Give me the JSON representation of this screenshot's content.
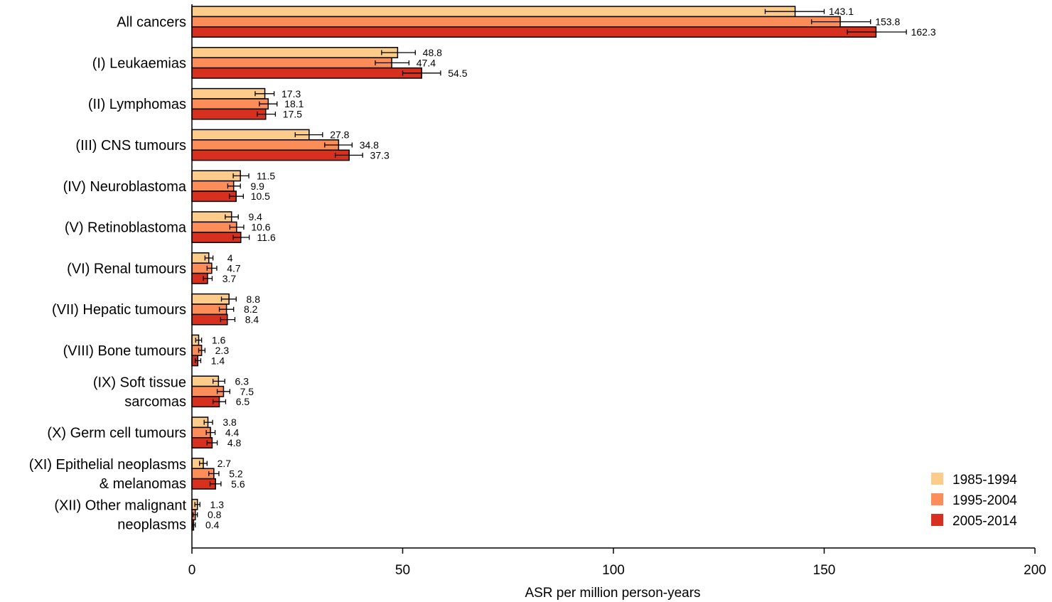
{
  "chart_data": {
    "type": "bar",
    "orientation": "horizontal",
    "title": "",
    "xlabel": "ASR per million person-years",
    "ylabel": "",
    "xlim": [
      0,
      200
    ],
    "xticks": [
      0,
      50,
      100,
      150,
      200
    ],
    "grid": false,
    "legend_position": "bottom-right",
    "categories": [
      [
        "All cancers"
      ],
      [
        "(I) Leukaemias"
      ],
      [
        "(II) Lymphomas"
      ],
      [
        "(III) CNS tumours"
      ],
      [
        "(IV) Neuroblastoma"
      ],
      [
        "(V) Retinoblastoma"
      ],
      [
        "(VI) Renal tumours"
      ],
      [
        "(VII) Hepatic tumours"
      ],
      [
        "(VIII) Bone tumours"
      ],
      [
        "(IX) Soft tissue",
        "sarcomas"
      ],
      [
        "(X) Germ cell tumours"
      ],
      [
        "(XI) Epithelial neoplasms",
        "& melanomas"
      ],
      [
        "(XII) Other malignant",
        "neoplasms"
      ]
    ],
    "series": [
      {
        "name": "1985-1994",
        "color": "#FDCC8A",
        "values": [
          143.1,
          48.8,
          17.3,
          27.8,
          11.5,
          9.4,
          4,
          8.8,
          1.6,
          6.3,
          3.8,
          2.7,
          1.3
        ],
        "ci_low": [
          136.0,
          45.0,
          15.0,
          24.5,
          9.8,
          7.9,
          3.1,
          7.0,
          0.9,
          5.0,
          2.9,
          1.8,
          0.7
        ],
        "ci_high": [
          150.0,
          53.0,
          19.5,
          31.0,
          13.5,
          11.0,
          5.0,
          10.5,
          2.3,
          7.8,
          4.9,
          3.6,
          1.9
        ]
      },
      {
        "name": "1995-2004",
        "color": "#FC8D59",
        "values": [
          153.8,
          47.4,
          18.1,
          34.8,
          9.9,
          10.6,
          4.7,
          8.2,
          2.3,
          7.5,
          4.4,
          5.2,
          0.8
        ],
        "ci_low": [
          147.0,
          43.5,
          16.0,
          31.5,
          8.5,
          9.0,
          3.6,
          6.5,
          1.6,
          6.0,
          3.4,
          4.0,
          0.3
        ],
        "ci_high": [
          161.0,
          51.5,
          20.2,
          38.0,
          11.5,
          12.3,
          5.9,
          9.9,
          3.1,
          9.0,
          5.5,
          6.4,
          1.3
        ]
      },
      {
        "name": "2005-2014",
        "color": "#D7301F",
        "values": [
          162.3,
          54.5,
          17.5,
          37.3,
          10.5,
          11.6,
          3.7,
          8.4,
          1.4,
          6.5,
          4.8,
          5.6,
          0.4
        ],
        "ci_low": [
          155.5,
          50.0,
          15.5,
          34.0,
          8.9,
          9.8,
          2.7,
          6.8,
          0.8,
          5.0,
          3.6,
          4.3,
          0.1
        ],
        "ci_high": [
          169.5,
          59.0,
          19.8,
          40.5,
          12.2,
          13.6,
          4.8,
          10.2,
          2.1,
          8.0,
          6.0,
          6.9,
          0.8
        ]
      }
    ]
  }
}
